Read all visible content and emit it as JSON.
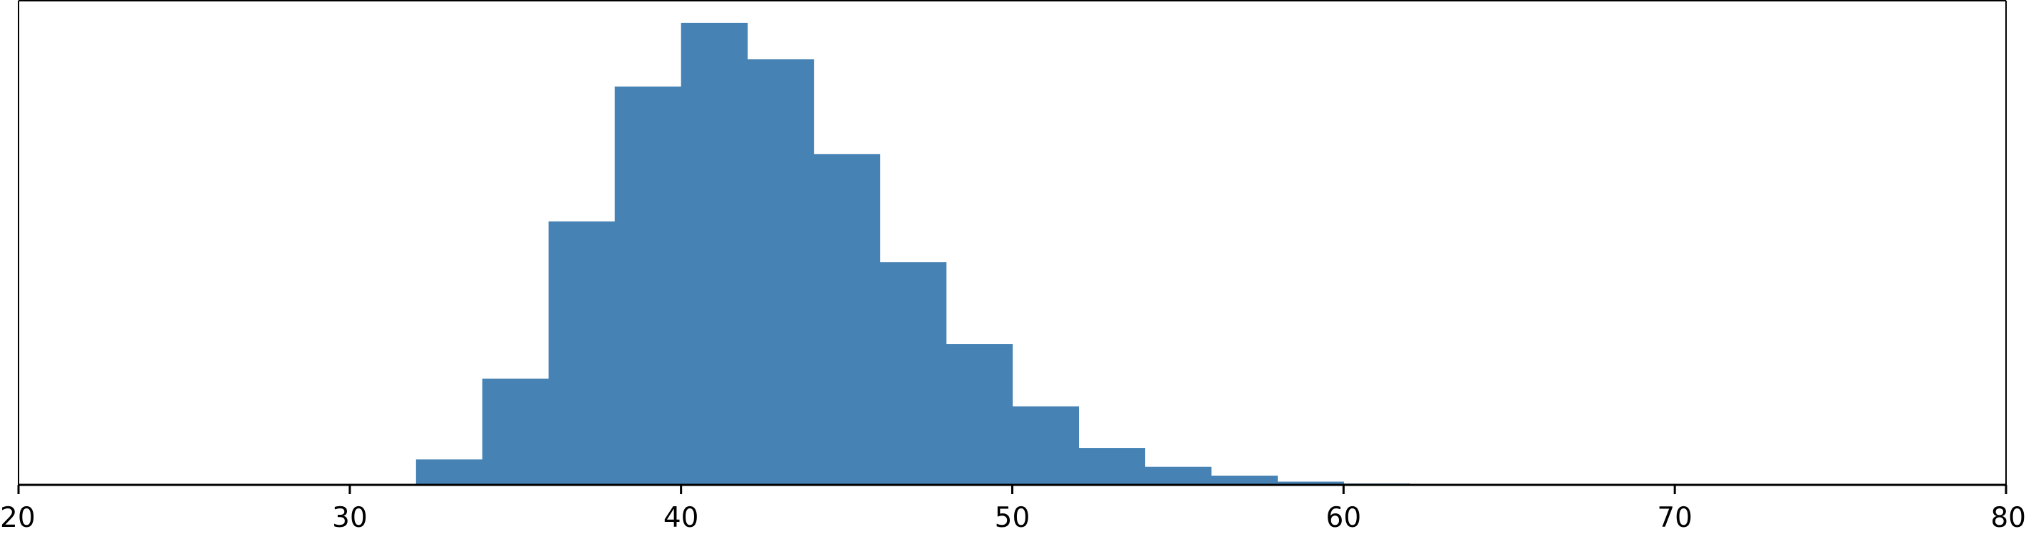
{
  "chart_data": {
    "type": "bar",
    "title": "",
    "xlabel": "",
    "ylabel": "",
    "xlim": [
      20,
      80
    ],
    "ylim": [
      0,
      1
    ],
    "yaxis_visible": false,
    "grid": false,
    "bar_color": "#4682b4",
    "bins": [
      {
        "x0": 32,
        "x1": 34,
        "value": 0.055
      },
      {
        "x0": 34,
        "x1": 36,
        "value": 0.23
      },
      {
        "x0": 36,
        "x1": 38,
        "value": 0.57
      },
      {
        "x0": 38,
        "x1": 40,
        "value": 0.862
      },
      {
        "x0": 40,
        "x1": 42,
        "value": 1.0
      },
      {
        "x0": 42,
        "x1": 44,
        "value": 0.921
      },
      {
        "x0": 44,
        "x1": 46,
        "value": 0.716
      },
      {
        "x0": 46,
        "x1": 48,
        "value": 0.482
      },
      {
        "x0": 48,
        "x1": 50,
        "value": 0.305
      },
      {
        "x0": 50,
        "x1": 52,
        "value": 0.17
      },
      {
        "x0": 52,
        "x1": 54,
        "value": 0.08
      },
      {
        "x0": 54,
        "x1": 56,
        "value": 0.039
      },
      {
        "x0": 56,
        "x1": 58,
        "value": 0.02
      },
      {
        "x0": 58,
        "x1": 60,
        "value": 0.007
      },
      {
        "x0": 60,
        "x1": 62,
        "value": 0.003
      }
    ],
    "x_ticks": [
      {
        "value": 20,
        "label": "20"
      },
      {
        "value": 30,
        "label": "30"
      },
      {
        "value": 40,
        "label": "40"
      },
      {
        "value": 50,
        "label": "50"
      },
      {
        "value": 60,
        "label": "60"
      },
      {
        "value": 70,
        "label": "70"
      },
      {
        "value": 80,
        "label": "80"
      }
    ]
  }
}
